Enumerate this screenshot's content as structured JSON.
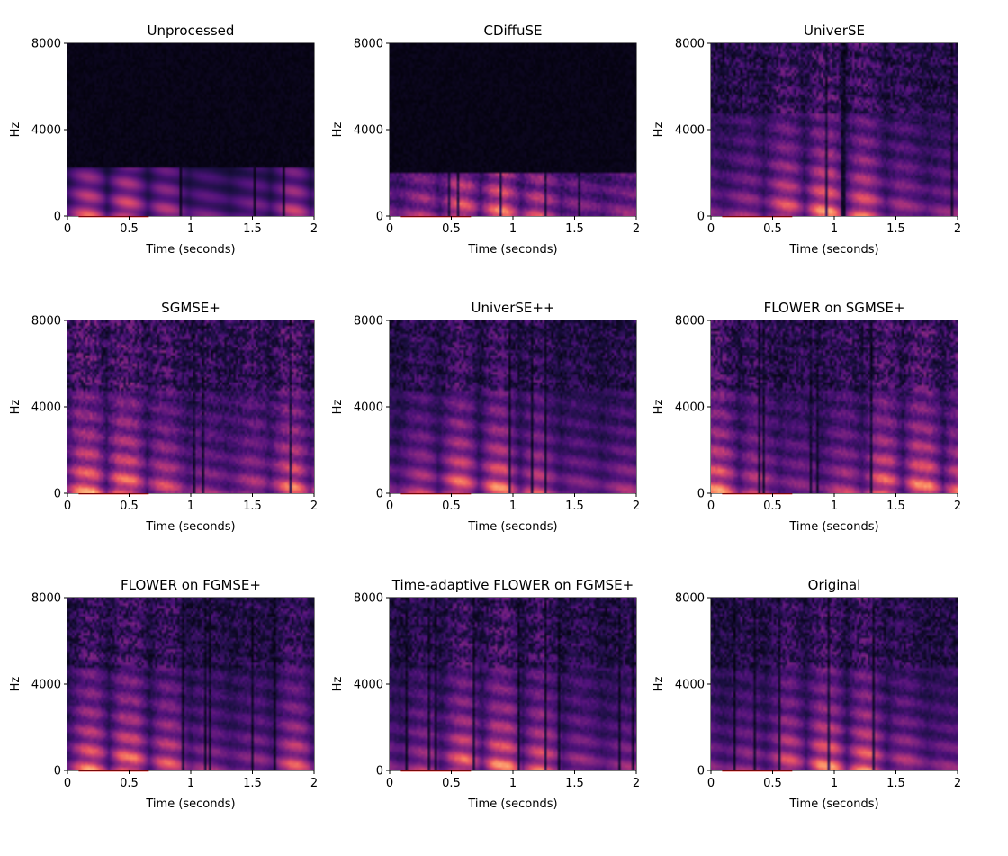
{
  "chart_data": {
    "type": "heatmap",
    "colormap": "magma",
    "colors": {
      "highlight_box": "#ee1111",
      "background": "#030210"
    },
    "shared_axes": {
      "xlabel": "Time (seconds)",
      "ylabel": "Hz",
      "xlim": [
        0,
        2
      ],
      "ylim": [
        0,
        8000
      ],
      "x_ticks": [
        0,
        0.5,
        1,
        1.5,
        2
      ],
      "x_tick_labels": [
        "0",
        "0.5",
        "1",
        "1.5",
        "2"
      ],
      "y_ticks": [
        0,
        4000,
        8000
      ],
      "y_tick_labels": [
        "0",
        "4000",
        "8000"
      ]
    },
    "highlight_box": {
      "x": [
        0.1,
        0.65
      ],
      "y": [
        0,
        5000
      ]
    },
    "panels": [
      {
        "title": "Unprocessed",
        "bandwidth_hz": 2200,
        "density": 0.4,
        "noise": 0.05,
        "seed": 11
      },
      {
        "title": "CDiffuSE",
        "bandwidth_hz": 2000,
        "density": 0.55,
        "noise": 0.55,
        "seed": 23
      },
      {
        "title": "UniverSE",
        "bandwidth_hz": 8000,
        "density": 0.75,
        "noise": 0.35,
        "seed": 37
      },
      {
        "title": "SGMSE+",
        "bandwidth_hz": 8000,
        "density": 0.85,
        "noise": 0.45,
        "seed": 41
      },
      {
        "title": "UniverSE++",
        "bandwidth_hz": 8000,
        "density": 0.75,
        "noise": 0.3,
        "seed": 53
      },
      {
        "title": "FLOWER on SGMSE+",
        "bandwidth_hz": 8000,
        "density": 0.8,
        "noise": 0.4,
        "seed": 61
      },
      {
        "title": "FLOWER on FGMSE+",
        "bandwidth_hz": 8000,
        "density": 0.8,
        "noise": 0.3,
        "seed": 71
      },
      {
        "title": "Time-adaptive FLOWER on FGMSE+",
        "bandwidth_hz": 8000,
        "density": 0.8,
        "noise": 0.32,
        "seed": 83
      },
      {
        "title": "Original",
        "bandwidth_hz": 8000,
        "density": 0.82,
        "noise": 0.3,
        "seed": 97
      }
    ]
  }
}
